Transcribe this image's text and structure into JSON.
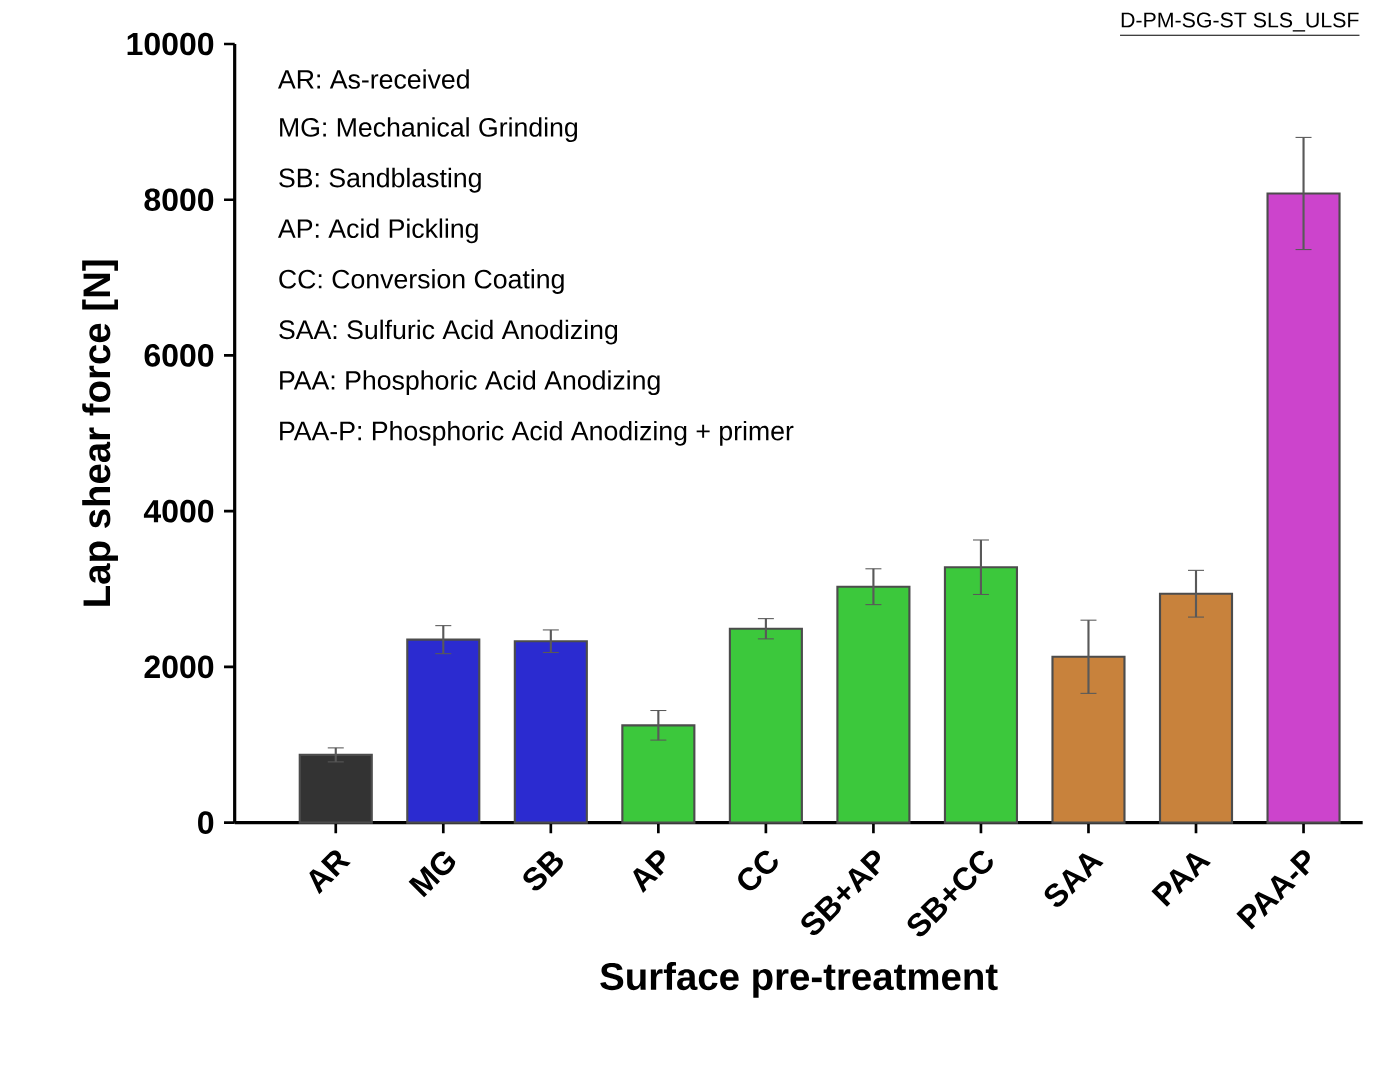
{
  "chart_data": {
    "type": "bar",
    "xlabel": "Surface pre-treatment",
    "ylabel": "Lap shear force [N]",
    "categories": [
      "AR",
      "MG",
      "SB",
      "AP",
      "CC",
      "SB+AP",
      "SB+CC",
      "SAA",
      "PAA",
      "PAA-P"
    ],
    "values": [
      870,
      2350,
      2330,
      1250,
      2490,
      3030,
      3280,
      2130,
      2940,
      8080
    ],
    "errors": [
      90,
      180,
      145,
      190,
      130,
      230,
      350,
      470,
      300,
      720
    ],
    "colors": [
      "#333333",
      "#2b2bd0",
      "#2b2bd0",
      "#3cc83c",
      "#3cc83c",
      "#3cc83c",
      "#3cc83c",
      "#c8823c",
      "#c8823c",
      "#cc44cc"
    ],
    "ylim": [
      0,
      10000
    ],
    "yticks": [
      0,
      2000,
      4000,
      6000,
      8000,
      10000
    ],
    "annotations": [
      "AR: As-received",
      "MG: Mechanical Grinding",
      "SB: Sandblasting",
      "AP: Acid Pickling",
      "CC: Conversion Coating",
      "SAA: Sulfuric Acid Anodizing",
      "PAA: Phosphoric Acid Anodizing",
      "PAA-P: Phosphoric Acid Anodizing + primer",
      "D-PM-SG-ST SLS_ULSF"
    ]
  }
}
